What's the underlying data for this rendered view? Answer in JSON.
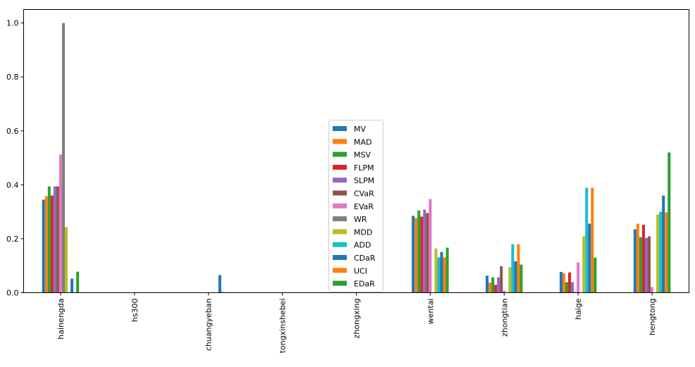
{
  "chart_data": {
    "type": "bar",
    "title": "",
    "xlabel": "",
    "ylabel": "",
    "ylim": [
      0,
      1.05
    ],
    "yticks": [
      "0.0",
      "0.2",
      "0.4",
      "0.6",
      "0.8",
      "1.0"
    ],
    "ytick_values": [
      0,
      0.2,
      0.4,
      0.6,
      0.8,
      1.0
    ],
    "legend_position": "center",
    "categories": [
      "hainengda",
      "hs300",
      "chuangyeban",
      "tongxinshebei",
      "zhongxing",
      "wentai",
      "zhongtian",
      "haige",
      "hengtong"
    ],
    "series": [
      {
        "name": "MV",
        "color": "#1f77b4",
        "values": [
          0.345,
          0,
          0,
          0,
          0,
          0.285,
          0.063,
          0.077,
          0.235
        ]
      },
      {
        "name": "MAD",
        "color": "#ff7f0e",
        "values": [
          0.358,
          0,
          0,
          0,
          0,
          0.277,
          0.037,
          0.072,
          0.256
        ]
      },
      {
        "name": "MSV",
        "color": "#2ca02c",
        "values": [
          0.394,
          0,
          0,
          0,
          0,
          0.305,
          0.057,
          0.039,
          0.206
        ]
      },
      {
        "name": "FLPM",
        "color": "#d62728",
        "values": [
          0.36,
          0,
          0,
          0,
          0,
          0.282,
          0.029,
          0.075,
          0.252
        ]
      },
      {
        "name": "SLPM",
        "color": "#9467bd",
        "values": [
          0.394,
          0,
          0,
          0,
          0,
          0.308,
          0.057,
          0.039,
          0.203
        ]
      },
      {
        "name": "CVaR",
        "color": "#8c564b",
        "values": [
          0.394,
          0,
          0,
          0,
          0,
          0.295,
          0.098,
          0.003,
          0.209
        ]
      },
      {
        "name": "EVaR",
        "color": "#e377c2",
        "values": [
          0.512,
          0,
          0,
          0,
          0,
          0.347,
          0.008,
          0.112,
          0.021
        ]
      },
      {
        "name": "WR",
        "color": "#7f7f7f",
        "values": [
          1.0,
          0,
          0,
          0,
          0,
          0,
          0,
          0,
          0
        ]
      },
      {
        "name": "MDD",
        "color": "#bcbd22",
        "values": [
          0.243,
          0,
          0,
          0,
          0,
          0.164,
          0.094,
          0.209,
          0.29
        ]
      },
      {
        "name": "ADD",
        "color": "#17becf",
        "values": [
          0,
          0,
          0,
          0,
          0,
          0.131,
          0.18,
          0.389,
          0.3
        ]
      },
      {
        "name": "CDaR",
        "color": "#1f77b4",
        "values": [
          0.052,
          0,
          0.065,
          0,
          0,
          0.151,
          0.116,
          0.256,
          0.36
        ]
      },
      {
        "name": "UCI",
        "color": "#ff7f0e",
        "values": [
          0,
          0,
          0.003,
          0,
          0,
          0.131,
          0.18,
          0.389,
          0.298
        ]
      },
      {
        "name": "EDaR",
        "color": "#2ca02c",
        "values": [
          0.078,
          0,
          0,
          0,
          0,
          0.167,
          0.104,
          0.13,
          0.52
        ]
      }
    ]
  }
}
